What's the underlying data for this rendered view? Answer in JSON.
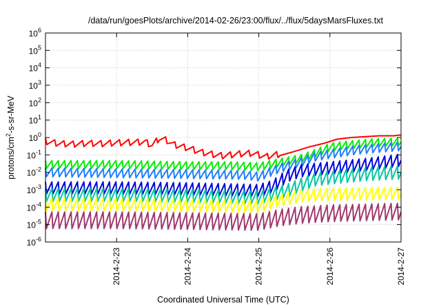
{
  "chart_data": {
    "type": "line",
    "title": "/data/run/goesPlots/archive/2014-02-26/23:00/flux/../flux/5daysMarsFluxes.txt",
    "xlabel": "Coordinated Universal Time (UTC)",
    "ylabel_main": "protons/cm",
    "ylabel_sup": "2",
    "ylabel_rest": "-s-sr-MeV",
    "x_range_days": [
      0,
      5
    ],
    "x_ticks": [
      {
        "day": 1,
        "label": "2014-2-23"
      },
      {
        "day": 2,
        "label": "2014-2-24"
      },
      {
        "day": 3,
        "label": "2014-2-25"
      },
      {
        "day": 4,
        "label": "2014-2-26"
      },
      {
        "day": 5,
        "label": "2014-2-27"
      }
    ],
    "y_scale": "log",
    "y_exp_range": [
      -6,
      6
    ],
    "y_ticks": [
      {
        "base": "10",
        "exp": "6"
      },
      {
        "base": "10",
        "exp": "5"
      },
      {
        "base": "10",
        "exp": "4"
      },
      {
        "base": "10",
        "exp": "3"
      },
      {
        "base": "10",
        "exp": "2"
      },
      {
        "base": "10",
        "exp": "1"
      },
      {
        "base": "10",
        "exp": "0"
      },
      {
        "base": "10",
        "exp": "-1"
      },
      {
        "base": "10",
        "exp": "-2"
      },
      {
        "base": "10",
        "exp": "-3"
      },
      {
        "base": "10",
        "exp": "-4"
      },
      {
        "base": "10",
        "exp": "-5"
      },
      {
        "base": "10",
        "exp": "-6"
      }
    ],
    "grid": true,
    "series": [
      {
        "color": "#ff0000",
        "points": [
          [
            0.0,
            -0.22
          ],
          [
            0.2,
            -0.35
          ],
          [
            0.4,
            -0.38
          ],
          [
            0.6,
            -0.33
          ],
          [
            0.8,
            -0.35
          ],
          [
            1.0,
            -0.3
          ],
          [
            1.2,
            -0.28
          ],
          [
            1.4,
            -0.25
          ],
          [
            1.5,
            -0.45
          ],
          [
            1.6,
            -0.05
          ],
          [
            1.7,
            -0.15
          ],
          [
            1.8,
            -0.4
          ],
          [
            2.0,
            -0.6
          ],
          [
            2.2,
            -0.85
          ],
          [
            2.4,
            -1.0
          ],
          [
            2.5,
            -1.05
          ],
          [
            2.7,
            -0.95
          ],
          [
            2.9,
            -0.9
          ],
          [
            3.1,
            -1.1
          ],
          [
            3.3,
            -0.95
          ],
          [
            3.5,
            -0.8
          ],
          [
            3.7,
            -0.55
          ],
          [
            3.9,
            -0.35
          ],
          [
            4.1,
            -0.1
          ],
          [
            4.3,
            0.0
          ],
          [
            4.5,
            0.05
          ],
          [
            4.7,
            0.1
          ],
          [
            4.9,
            0.1
          ],
          [
            5.0,
            0.15
          ]
        ],
        "teeth": {
          "start": 0.0,
          "end": 3.3,
          "period": 0.13,
          "amp": 0.35
        }
      },
      {
        "color": "#00ee00",
        "points": [
          [
            0.0,
            -1.55
          ],
          [
            1.0,
            -1.55
          ],
          [
            2.0,
            -1.62
          ],
          [
            2.6,
            -1.62
          ],
          [
            3.0,
            -1.68
          ],
          [
            3.4,
            -1.35
          ],
          [
            3.6,
            -1.2
          ],
          [
            3.8,
            -0.9
          ],
          [
            4.0,
            -0.55
          ],
          [
            4.2,
            -0.45
          ],
          [
            4.6,
            -0.3
          ],
          [
            5.0,
            -0.25
          ]
        ],
        "teeth": {
          "start": 0.0,
          "end": 5.0,
          "period": 0.09,
          "amp": 0.45
        }
      },
      {
        "color": "#1e7fff",
        "points": [
          [
            0.0,
            -2.0
          ],
          [
            1.0,
            -2.05
          ],
          [
            2.0,
            -2.1
          ],
          [
            2.8,
            -2.15
          ],
          [
            3.0,
            -2.25
          ],
          [
            3.3,
            -1.75
          ],
          [
            3.6,
            -1.4
          ],
          [
            3.8,
            -1.1
          ],
          [
            4.0,
            -0.95
          ],
          [
            4.4,
            -0.7
          ],
          [
            5.0,
            -0.5
          ]
        ],
        "teeth": {
          "start": 0.0,
          "end": 5.0,
          "period": 0.09,
          "amp": 0.5
        }
      },
      {
        "color": "#0000dd",
        "points": [
          [
            0.0,
            -2.9
          ],
          [
            1.0,
            -2.9
          ],
          [
            2.0,
            -2.95
          ],
          [
            3.0,
            -3.05
          ],
          [
            3.2,
            -2.8
          ],
          [
            3.4,
            -2.2
          ],
          [
            3.6,
            -1.9
          ],
          [
            4.0,
            -1.75
          ],
          [
            4.5,
            -1.55
          ],
          [
            5.0,
            -1.3
          ]
        ],
        "teeth": {
          "start": 0.0,
          "end": 5.0,
          "period": 0.09,
          "amp": 0.7
        }
      },
      {
        "color": "#00c8a0",
        "points": [
          [
            0.0,
            -3.3
          ],
          [
            1.0,
            -3.3
          ],
          [
            2.0,
            -3.35
          ],
          [
            3.0,
            -3.45
          ],
          [
            3.4,
            -3.05
          ],
          [
            3.6,
            -2.7
          ],
          [
            3.8,
            -2.4
          ],
          [
            4.0,
            -2.3
          ],
          [
            4.5,
            -2.1
          ],
          [
            5.0,
            -2.0
          ]
        ],
        "teeth": {
          "start": 0.0,
          "end": 5.0,
          "period": 0.09,
          "amp": 0.75
        }
      },
      {
        "color": "#ffff00",
        "points": [
          [
            0.0,
            -3.85
          ],
          [
            1.0,
            -3.85
          ],
          [
            2.0,
            -3.9
          ],
          [
            3.0,
            -3.95
          ],
          [
            3.3,
            -3.6
          ],
          [
            3.6,
            -3.35
          ],
          [
            4.0,
            -3.25
          ],
          [
            5.0,
            -3.2
          ]
        ],
        "teeth": {
          "start": 0.0,
          "end": 5.0,
          "period": 0.09,
          "amp": 0.7
        }
      },
      {
        "color": "#a0386e",
        "points": [
          [
            0.0,
            -4.75
          ],
          [
            1.0,
            -4.75
          ],
          [
            2.0,
            -4.8
          ],
          [
            3.0,
            -4.85
          ],
          [
            3.3,
            -4.6
          ],
          [
            3.6,
            -4.45
          ],
          [
            4.0,
            -4.35
          ],
          [
            5.0,
            -4.25
          ]
        ],
        "teeth": {
          "start": 0.0,
          "end": 5.0,
          "period": 0.09,
          "amp": 0.95
        }
      }
    ]
  }
}
